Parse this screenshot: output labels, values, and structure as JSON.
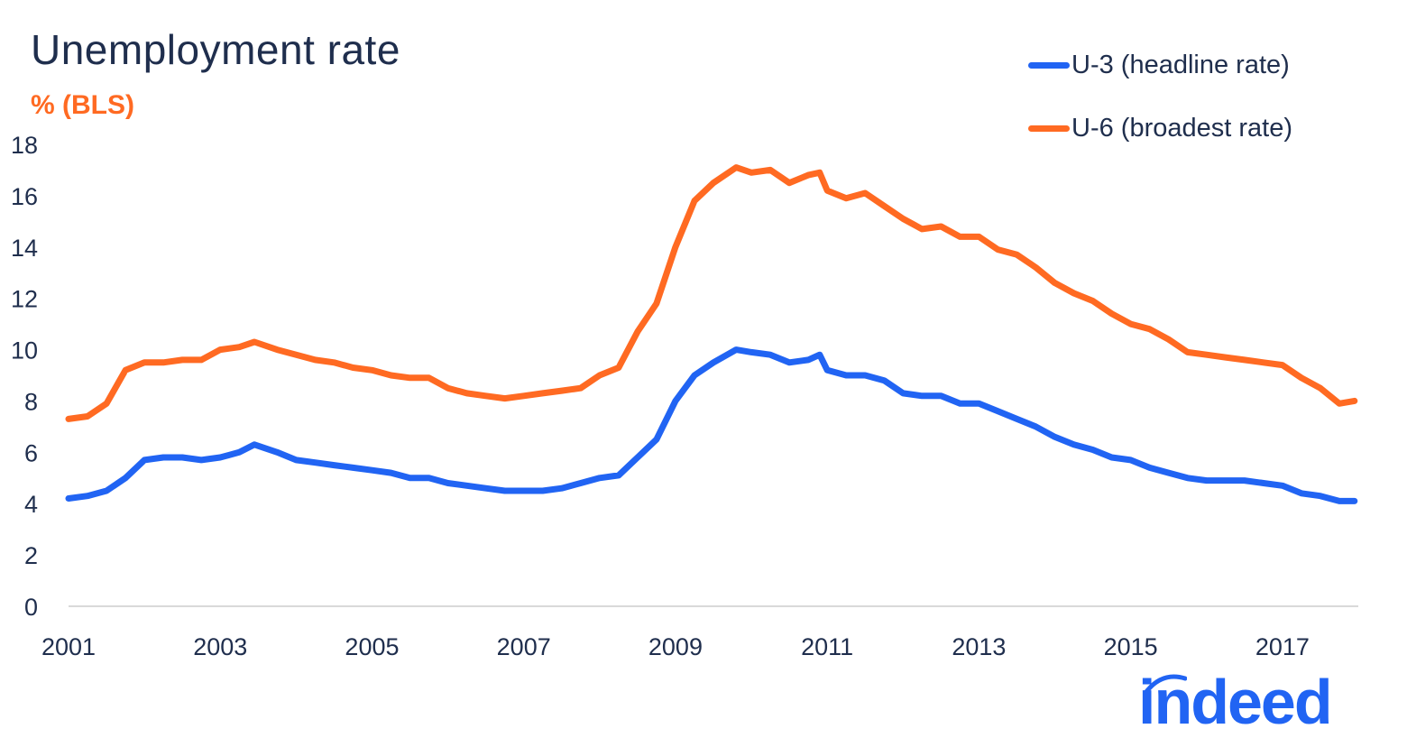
{
  "chart_data": {
    "type": "line",
    "title": "Unemployment rate",
    "ylabel": "% (BLS)",
    "xlim": [
      2001,
      2018
    ],
    "ylim": [
      0,
      18
    ],
    "yticks": [
      0,
      2,
      4,
      6,
      8,
      10,
      12,
      14,
      16,
      18
    ],
    "xticks": [
      "2001",
      "2003",
      "2005",
      "2007",
      "2009",
      "2011",
      "2013",
      "2015",
      "2017"
    ],
    "legend_position": "top-right",
    "grid": false,
    "series": [
      {
        "name": "U-3 (headline rate)",
        "color": "#2164f3",
        "points": [
          [
            2001.0,
            4.2
          ],
          [
            2001.25,
            4.3
          ],
          [
            2001.5,
            4.5
          ],
          [
            2001.75,
            5.0
          ],
          [
            2002.0,
            5.7
          ],
          [
            2002.25,
            5.8
          ],
          [
            2002.5,
            5.8
          ],
          [
            2002.75,
            5.7
          ],
          [
            2003.0,
            5.8
          ],
          [
            2003.25,
            6.0
          ],
          [
            2003.45,
            6.3
          ],
          [
            2003.75,
            6.0
          ],
          [
            2004.0,
            5.7
          ],
          [
            2004.25,
            5.6
          ],
          [
            2004.5,
            5.5
          ],
          [
            2004.75,
            5.4
          ],
          [
            2005.0,
            5.3
          ],
          [
            2005.25,
            5.2
          ],
          [
            2005.5,
            5.0
          ],
          [
            2005.75,
            5.0
          ],
          [
            2006.0,
            4.8
          ],
          [
            2006.25,
            4.7
          ],
          [
            2006.5,
            4.6
          ],
          [
            2006.75,
            4.5
          ],
          [
            2007.0,
            4.5
          ],
          [
            2007.25,
            4.5
          ],
          [
            2007.5,
            4.6
          ],
          [
            2007.75,
            4.8
          ],
          [
            2008.0,
            5.0
          ],
          [
            2008.25,
            5.1
          ],
          [
            2008.5,
            5.8
          ],
          [
            2008.75,
            6.5
          ],
          [
            2009.0,
            8.0
          ],
          [
            2009.25,
            9.0
          ],
          [
            2009.5,
            9.5
          ],
          [
            2009.8,
            10.0
          ],
          [
            2010.0,
            9.9
          ],
          [
            2010.25,
            9.8
          ],
          [
            2010.5,
            9.5
          ],
          [
            2010.75,
            9.6
          ],
          [
            2010.9,
            9.8
          ],
          [
            2011.0,
            9.2
          ],
          [
            2011.25,
            9.0
          ],
          [
            2011.5,
            9.0
          ],
          [
            2011.75,
            8.8
          ],
          [
            2012.0,
            8.3
          ],
          [
            2012.25,
            8.2
          ],
          [
            2012.5,
            8.2
          ],
          [
            2012.75,
            7.9
          ],
          [
            2013.0,
            7.9
          ],
          [
            2013.25,
            7.6
          ],
          [
            2013.5,
            7.3
          ],
          [
            2013.75,
            7.0
          ],
          [
            2014.0,
            6.6
          ],
          [
            2014.25,
            6.3
          ],
          [
            2014.5,
            6.1
          ],
          [
            2014.75,
            5.8
          ],
          [
            2015.0,
            5.7
          ],
          [
            2015.25,
            5.4
          ],
          [
            2015.5,
            5.2
          ],
          [
            2015.75,
            5.0
          ],
          [
            2016.0,
            4.9
          ],
          [
            2016.25,
            4.9
          ],
          [
            2016.5,
            4.9
          ],
          [
            2016.75,
            4.8
          ],
          [
            2017.0,
            4.7
          ],
          [
            2017.25,
            4.4
          ],
          [
            2017.5,
            4.3
          ],
          [
            2017.75,
            4.1
          ],
          [
            2017.95,
            4.1
          ]
        ]
      },
      {
        "name": "U-6 (broadest rate)",
        "color": "#ff6a22",
        "points": [
          [
            2001.0,
            7.3
          ],
          [
            2001.25,
            7.4
          ],
          [
            2001.5,
            7.9
          ],
          [
            2001.75,
            9.2
          ],
          [
            2002.0,
            9.5
          ],
          [
            2002.25,
            9.5
          ],
          [
            2002.5,
            9.6
          ],
          [
            2002.75,
            9.6
          ],
          [
            2003.0,
            10.0
          ],
          [
            2003.25,
            10.1
          ],
          [
            2003.45,
            10.3
          ],
          [
            2003.75,
            10.0
          ],
          [
            2004.0,
            9.8
          ],
          [
            2004.25,
            9.6
          ],
          [
            2004.5,
            9.5
          ],
          [
            2004.75,
            9.3
          ],
          [
            2005.0,
            9.2
          ],
          [
            2005.25,
            9.0
          ],
          [
            2005.5,
            8.9
          ],
          [
            2005.75,
            8.9
          ],
          [
            2006.0,
            8.5
          ],
          [
            2006.25,
            8.3
          ],
          [
            2006.5,
            8.2
          ],
          [
            2006.75,
            8.1
          ],
          [
            2007.0,
            8.2
          ],
          [
            2007.25,
            8.3
          ],
          [
            2007.5,
            8.4
          ],
          [
            2007.75,
            8.5
          ],
          [
            2008.0,
            9.0
          ],
          [
            2008.25,
            9.3
          ],
          [
            2008.5,
            10.7
          ],
          [
            2008.75,
            11.8
          ],
          [
            2009.0,
            14.0
          ],
          [
            2009.25,
            15.8
          ],
          [
            2009.5,
            16.5
          ],
          [
            2009.8,
            17.1
          ],
          [
            2010.0,
            16.9
          ],
          [
            2010.25,
            17.0
          ],
          [
            2010.5,
            16.5
          ],
          [
            2010.75,
            16.8
          ],
          [
            2010.9,
            16.9
          ],
          [
            2011.0,
            16.2
          ],
          [
            2011.25,
            15.9
          ],
          [
            2011.5,
            16.1
          ],
          [
            2011.75,
            15.6
          ],
          [
            2012.0,
            15.1
          ],
          [
            2012.25,
            14.7
          ],
          [
            2012.5,
            14.8
          ],
          [
            2012.75,
            14.4
          ],
          [
            2013.0,
            14.4
          ],
          [
            2013.25,
            13.9
          ],
          [
            2013.5,
            13.7
          ],
          [
            2013.75,
            13.2
          ],
          [
            2014.0,
            12.6
          ],
          [
            2014.25,
            12.2
          ],
          [
            2014.5,
            11.9
          ],
          [
            2014.75,
            11.4
          ],
          [
            2015.0,
            11.0
          ],
          [
            2015.25,
            10.8
          ],
          [
            2015.5,
            10.4
          ],
          [
            2015.75,
            9.9
          ],
          [
            2016.0,
            9.8
          ],
          [
            2016.25,
            9.7
          ],
          [
            2016.5,
            9.6
          ],
          [
            2016.75,
            9.5
          ],
          [
            2017.0,
            9.4
          ],
          [
            2017.25,
            8.9
          ],
          [
            2017.5,
            8.5
          ],
          [
            2017.75,
            7.9
          ],
          [
            2017.95,
            8.0
          ]
        ]
      }
    ]
  },
  "branding": {
    "logo_text": "indeed",
    "logo_color": "#2164f3"
  }
}
